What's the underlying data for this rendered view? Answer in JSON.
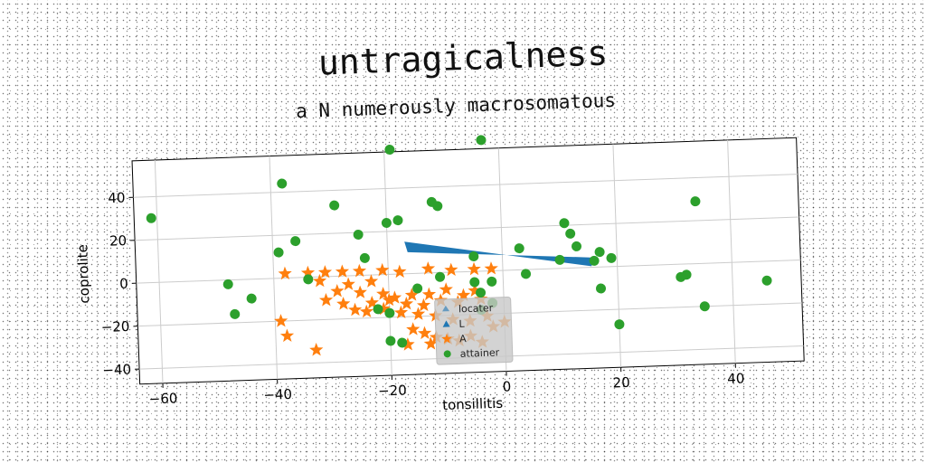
{
  "chart_data": {
    "type": "scatter",
    "title": "untragicalness",
    "subtitle": "a N numerously macrosomatous",
    "xlabel": "tonsillitis",
    "ylabel": "coprolite",
    "xlim": [
      -64,
      52
    ],
    "ylim": [
      -47,
      57
    ],
    "xticks": [
      -60,
      -40,
      -20,
      0,
      20,
      40
    ],
    "yticks": [
      -40,
      -20,
      0,
      20,
      40
    ],
    "grid": true,
    "legend_position": "lower-center",
    "series": [
      {
        "name": "locater",
        "marker": "wedge",
        "color": "#1f77b4",
        "points": [
          [
            -17,
            15
          ],
          [
            -16.5,
            10
          ],
          [
            16,
            4.5
          ],
          [
            15.5,
            0.5
          ]
        ]
      },
      {
        "name": "L",
        "marker": "triangle",
        "color": "#1f77b4",
        "points": []
      },
      {
        "name": "A",
        "marker": "star",
        "color": "#ff7f0e",
        "points": [
          [
            -38,
            2
          ],
          [
            -34,
            2
          ],
          [
            -31,
            2
          ],
          [
            -28,
            2
          ],
          [
            -25,
            2
          ],
          [
            -21,
            2
          ],
          [
            -18,
            1
          ],
          [
            -13,
            2
          ],
          [
            -9,
            1
          ],
          [
            -5,
            1
          ],
          [
            -2,
            1
          ],
          [
            -32,
            -2
          ],
          [
            -27,
            -4
          ],
          [
            -23,
            -3
          ],
          [
            -29,
            -7
          ],
          [
            -25,
            -8
          ],
          [
            -21,
            -9
          ],
          [
            -19,
            -11
          ],
          [
            -16,
            -10
          ],
          [
            -13,
            -10
          ],
          [
            -10,
            -8
          ],
          [
            -7,
            -11
          ],
          [
            -5,
            -9
          ],
          [
            -31,
            -11
          ],
          [
            -28,
            -13
          ],
          [
            -23,
            -13
          ],
          [
            -20,
            -12
          ],
          [
            -17,
            -14
          ],
          [
            -14,
            -15
          ],
          [
            -11,
            -13
          ],
          [
            -8,
            -14
          ],
          [
            -4,
            -13
          ],
          [
            -26,
            -16
          ],
          [
            -24,
            -17
          ],
          [
            -21,
            -16
          ],
          [
            -18,
            -18
          ],
          [
            -15,
            -19
          ],
          [
            -12,
            -20
          ],
          [
            -9,
            -22
          ],
          [
            -6,
            -23
          ],
          [
            -3,
            -21
          ],
          [
            0,
            -24
          ],
          [
            -2,
            -26
          ],
          [
            -16,
            -26
          ],
          [
            -14,
            -28
          ],
          [
            -12,
            -30
          ],
          [
            -10,
            -31
          ],
          [
            -8,
            -32
          ],
          [
            -13,
            -33
          ],
          [
            -17,
            -33
          ],
          [
            -39,
            -20
          ],
          [
            -38,
            -27
          ],
          [
            -33,
            -34
          ],
          [
            -6,
            -30
          ],
          [
            -4,
            -33
          ]
        ]
      },
      {
        "name": "attainer",
        "marker": "circle",
        "color": "#2ca02c",
        "points": [
          [
            -61,
            30
          ],
          [
            -38,
            44
          ],
          [
            -36,
            17
          ],
          [
            -39,
            12
          ],
          [
            -29,
            33
          ],
          [
            -25,
            19
          ],
          [
            -24,
            8
          ],
          [
            -20,
            24
          ],
          [
            -18,
            25
          ],
          [
            -19,
            58
          ],
          [
            -12,
            33
          ],
          [
            -11,
            31
          ],
          [
            -3,
            61
          ],
          [
            -48,
            -2
          ],
          [
            -44,
            -9
          ],
          [
            -47,
            -16
          ],
          [
            -34,
            -1
          ],
          [
            -22,
            -16
          ],
          [
            -20,
            -18
          ],
          [
            -20,
            -31
          ],
          [
            -18,
            -32
          ],
          [
            -15,
            -7
          ],
          [
            -11,
            -2
          ],
          [
            -5,
            -5
          ],
          [
            -4,
            -10
          ],
          [
            -4,
            -18
          ],
          [
            -2,
            -5
          ],
          [
            -2,
            -15
          ],
          [
            -5,
            7
          ],
          [
            3,
            10
          ],
          [
            4,
            -2
          ],
          [
            10,
            4
          ],
          [
            11,
            21
          ],
          [
            12,
            16
          ],
          [
            13,
            10
          ],
          [
            16,
            3
          ],
          [
            17,
            7
          ],
          [
            19,
            4
          ],
          [
            17,
            -10
          ],
          [
            20,
            -27
          ],
          [
            31,
            -6
          ],
          [
            32,
            -5
          ],
          [
            34,
            29
          ],
          [
            35,
            -20
          ],
          [
            46,
            -9
          ]
        ]
      }
    ]
  },
  "legend": {
    "items": [
      {
        "label": "locater",
        "marker": "wedge",
        "color": "#1f77b4"
      },
      {
        "label": "L",
        "marker": "triangle",
        "color": "#1f77b4"
      },
      {
        "label": "A",
        "marker": "star",
        "color": "#ff7f0e"
      },
      {
        "label": "attainer",
        "marker": "circle",
        "color": "#2ca02c"
      }
    ]
  }
}
